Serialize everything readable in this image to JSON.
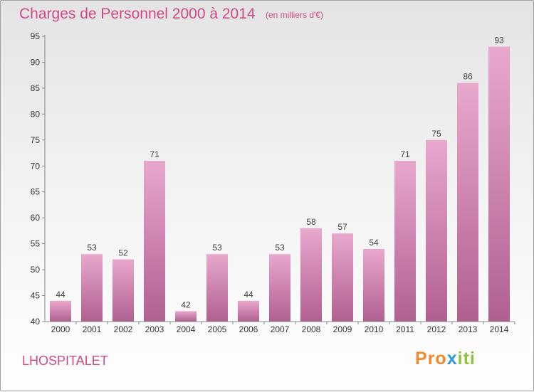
{
  "title": "Charges de Personnel 2000 à 2014",
  "unit": "(en milliers d'€)",
  "commune": "LHOSPITALET",
  "logo": {
    "text": "Proxiti",
    "colors": [
      "#f08a2a",
      "#2b9ad8",
      "#8cc63f"
    ]
  },
  "colors": {
    "bar_top": "#e8a8cc",
    "bar_bottom": "#b06090",
    "accent": "#d04888"
  },
  "chart_data": {
    "type": "bar",
    "title": "Charges de Personnel 2000 à 2014",
    "categories": [
      "2000",
      "2001",
      "2002",
      "2003",
      "2004",
      "2005",
      "2006",
      "2007",
      "2008",
      "2009",
      "2010",
      "2011",
      "2012",
      "2013",
      "2014"
    ],
    "values": [
      44,
      53,
      52,
      71,
      42,
      53,
      44,
      53,
      58,
      57,
      54,
      71,
      75,
      86,
      93
    ],
    "ylim": [
      40,
      95
    ],
    "yticks": [
      40,
      45,
      50,
      55,
      60,
      65,
      70,
      75,
      80,
      85,
      90,
      95
    ],
    "grid": false,
    "data_labels": true
  }
}
